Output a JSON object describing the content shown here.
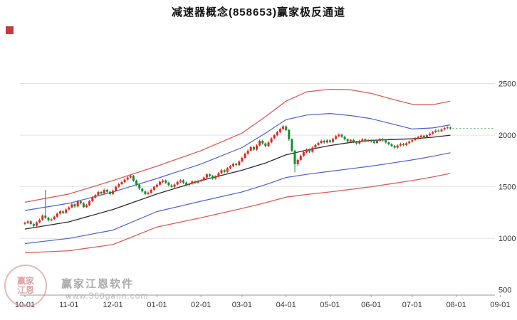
{
  "title": "减速器概念(858653)赢家极反通道",
  "watermark": {
    "line1": "赢家江恩软件",
    "line2": "www.360gann.com",
    "badge_line1": "赢家",
    "badge_line2": "江恩"
  },
  "chart_data": {
    "type": "candlestick",
    "title": "减速器概念(858653)赢家极反通道",
    "ylabel": "",
    "xlabel": "",
    "y_ticks": [
      500,
      1000,
      1500,
      2000,
      2500
    ],
    "y_range": [
      450,
      3000
    ],
    "grid": true,
    "x_labels": [
      "10-01",
      "11-01",
      "12-01",
      "01-01",
      "02-01",
      "03-01",
      "04-01",
      "05-01",
      "06-01",
      "07-01",
      "08-01",
      "09-01"
    ],
    "month_indices": [
      0,
      15,
      30,
      45,
      60,
      74,
      89,
      104,
      118,
      132,
      147,
      162
    ],
    "current_price": 2065,
    "candles": [
      [
        1140,
        1162,
        1128,
        1150
      ],
      [
        1150,
        1177,
        1140,
        1165
      ],
      [
        1165,
        1175,
        1130,
        1140
      ],
      [
        1140,
        1150,
        1110,
        1122
      ],
      [
        1122,
        1165,
        1112,
        1155
      ],
      [
        1155,
        1192,
        1145,
        1180
      ],
      [
        1180,
        1232,
        1170,
        1220
      ],
      [
        1220,
        1470,
        1190,
        1200
      ],
      [
        1200,
        1210,
        1163,
        1175
      ],
      [
        1175,
        1197,
        1165,
        1185
      ],
      [
        1185,
        1222,
        1175,
        1210
      ],
      [
        1210,
        1252,
        1200,
        1240
      ],
      [
        1240,
        1274,
        1230,
        1262
      ],
      [
        1262,
        1272,
        1236,
        1248
      ],
      [
        1248,
        1292,
        1238,
        1280
      ],
      [
        1280,
        1312,
        1270,
        1300
      ],
      [
        1300,
        1342,
        1290,
        1330
      ],
      [
        1330,
        1340,
        1298,
        1310
      ],
      [
        1310,
        1372,
        1300,
        1360
      ],
      [
        1360,
        1370,
        1328,
        1340
      ],
      [
        1340,
        1350,
        1293,
        1305
      ],
      [
        1305,
        1334,
        1295,
        1322
      ],
      [
        1322,
        1372,
        1312,
        1360
      ],
      [
        1360,
        1407,
        1350,
        1395
      ],
      [
        1395,
        1432,
        1385,
        1420
      ],
      [
        1420,
        1462,
        1410,
        1450
      ],
      [
        1450,
        1460,
        1423,
        1435
      ],
      [
        1435,
        1482,
        1425,
        1470
      ],
      [
        1470,
        1480,
        1440,
        1452
      ],
      [
        1452,
        1462,
        1418,
        1430
      ],
      [
        1430,
        1474,
        1420,
        1462
      ],
      [
        1462,
        1512,
        1452,
        1500
      ],
      [
        1500,
        1537,
        1490,
        1525
      ],
      [
        1525,
        1557,
        1515,
        1545
      ],
      [
        1545,
        1582,
        1535,
        1570
      ],
      [
        1570,
        1602,
        1560,
        1590
      ],
      [
        1590,
        1622,
        1580,
        1605
      ],
      [
        1605,
        1615,
        1548,
        1560
      ],
      [
        1560,
        1570,
        1508,
        1520
      ],
      [
        1520,
        1530,
        1470,
        1482
      ],
      [
        1482,
        1492,
        1443,
        1455
      ],
      [
        1455,
        1465,
        1418,
        1430
      ],
      [
        1430,
        1454,
        1420,
        1442
      ],
      [
        1442,
        1482,
        1432,
        1470
      ],
      [
        1470,
        1512,
        1460,
        1500
      ],
      [
        1500,
        1532,
        1490,
        1520
      ],
      [
        1520,
        1560,
        1510,
        1548
      ],
      [
        1548,
        1574,
        1538,
        1562
      ],
      [
        1562,
        1572,
        1528,
        1540
      ],
      [
        1540,
        1550,
        1503,
        1515
      ],
      [
        1515,
        1525,
        1488,
        1500
      ],
      [
        1500,
        1534,
        1490,
        1522
      ],
      [
        1522,
        1560,
        1512,
        1548
      ],
      [
        1548,
        1574,
        1538,
        1562
      ],
      [
        1562,
        1572,
        1528,
        1540
      ],
      [
        1540,
        1550,
        1506,
        1518
      ],
      [
        1518,
        1542,
        1508,
        1530
      ],
      [
        1530,
        1564,
        1520,
        1552
      ],
      [
        1552,
        1562,
        1528,
        1540
      ],
      [
        1540,
        1568,
        1530,
        1556
      ],
      [
        1556,
        1577,
        1546,
        1565
      ],
      [
        1565,
        1602,
        1555,
        1590
      ],
      [
        1590,
        1632,
        1580,
        1620
      ],
      [
        1620,
        1630,
        1593,
        1605
      ],
      [
        1605,
        1615,
        1568,
        1580
      ],
      [
        1580,
        1612,
        1570,
        1600
      ],
      [
        1600,
        1644,
        1590,
        1632
      ],
      [
        1632,
        1672,
        1622,
        1660
      ],
      [
        1660,
        1670,
        1633,
        1645
      ],
      [
        1645,
        1692,
        1635,
        1680
      ],
      [
        1680,
        1712,
        1670,
        1700
      ],
      [
        1700,
        1734,
        1690,
        1722
      ],
      [
        1722,
        1732,
        1698,
        1710
      ],
      [
        1710,
        1757,
        1700,
        1745
      ],
      [
        1745,
        1792,
        1735,
        1780
      ],
      [
        1780,
        1832,
        1770,
        1820
      ],
      [
        1820,
        1862,
        1810,
        1850
      ],
      [
        1850,
        1897,
        1840,
        1885
      ],
      [
        1885,
        1895,
        1848,
        1860
      ],
      [
        1860,
        1912,
        1850,
        1900
      ],
      [
        1900,
        1957,
        1890,
        1945
      ],
      [
        1945,
        1955,
        1908,
        1920
      ],
      [
        1920,
        1930,
        1883,
        1895
      ],
      [
        1895,
        1942,
        1885,
        1930
      ],
      [
        1930,
        1982,
        1920,
        1970
      ],
      [
        1970,
        2012,
        1960,
        2000
      ],
      [
        2000,
        2042,
        1990,
        2030
      ],
      [
        2030,
        2072,
        2020,
        2060
      ],
      [
        2060,
        2097,
        2050,
        2085
      ],
      [
        2085,
        2095,
        2038,
        2050
      ],
      [
        2050,
        2060,
        1945,
        1960
      ],
      [
        1960,
        1970,
        1835,
        1850
      ],
      [
        1850,
        1860,
        1640,
        1720
      ],
      [
        1720,
        1772,
        1700,
        1760
      ],
      [
        1760,
        1812,
        1750,
        1800
      ],
      [
        1800,
        1847,
        1790,
        1835
      ],
      [
        1835,
        1872,
        1825,
        1860
      ],
      [
        1860,
        1870,
        1828,
        1840
      ],
      [
        1840,
        1892,
        1830,
        1880
      ],
      [
        1880,
        1917,
        1870,
        1905
      ],
      [
        1905,
        1937,
        1895,
        1925
      ],
      [
        1925,
        1957,
        1915,
        1945
      ],
      [
        1945,
        1955,
        1918,
        1930
      ],
      [
        1930,
        1962,
        1920,
        1950
      ],
      [
        1950,
        1960,
        1923,
        1935
      ],
      [
        1935,
        1977,
        1925,
        1965
      ],
      [
        1965,
        2002,
        1955,
        1990
      ],
      [
        1990,
        2017,
        1980,
        2005
      ],
      [
        2005,
        2015,
        1973,
        1985
      ],
      [
        1985,
        1995,
        1948,
        1960
      ],
      [
        1960,
        1970,
        1928,
        1940
      ],
      [
        1940,
        1967,
        1930,
        1955
      ],
      [
        1955,
        1965,
        1923,
        1935
      ],
      [
        1935,
        1945,
        1908,
        1920
      ],
      [
        1920,
        1957,
        1910,
        1945
      ],
      [
        1945,
        1972,
        1935,
        1960
      ],
      [
        1960,
        1970,
        1930,
        1942
      ],
      [
        1942,
        1964,
        1932,
        1952
      ],
      [
        1952,
        1962,
        1928,
        1940
      ],
      [
        1940,
        1950,
        1913,
        1925
      ],
      [
        1925,
        1957,
        1915,
        1945
      ],
      [
        1945,
        1974,
        1935,
        1962
      ],
      [
        1962,
        1972,
        1938,
        1950
      ],
      [
        1950,
        1960,
        1918,
        1930
      ],
      [
        1930,
        1940,
        1900,
        1912
      ],
      [
        1912,
        1922,
        1883,
        1895
      ],
      [
        1895,
        1905,
        1868,
        1880
      ],
      [
        1880,
        1912,
        1870,
        1900
      ],
      [
        1900,
        1927,
        1890,
        1915
      ],
      [
        1915,
        1925,
        1893,
        1905
      ],
      [
        1905,
        1934,
        1895,
        1922
      ],
      [
        1922,
        1950,
        1912,
        1938
      ],
      [
        1938,
        1964,
        1928,
        1952
      ],
      [
        1952,
        1980,
        1942,
        1968
      ],
      [
        1968,
        1994,
        1958,
        1982
      ],
      [
        1982,
        2007,
        1972,
        1995
      ],
      [
        1995,
        2005,
        1968,
        1980
      ],
      [
        1980,
        2012,
        1970,
        2000
      ],
      [
        2000,
        2027,
        1990,
        2015
      ],
      [
        2015,
        2042,
        2005,
        2030
      ],
      [
        2030,
        2057,
        2020,
        2045
      ],
      [
        2045,
        2055,
        2026,
        2038
      ],
      [
        2038,
        2067,
        2028,
        2055
      ],
      [
        2055,
        2080,
        2045,
        2068
      ],
      [
        2068,
        2087,
        2058,
        2075
      ],
      [
        2075,
        2085,
        2053,
        2065
      ]
    ],
    "bands": {
      "keypoint_indices": [
        0,
        15,
        30,
        45,
        60,
        74,
        82,
        89,
        96,
        104,
        111,
        118,
        125,
        132,
        139,
        145
      ],
      "upper_red": [
        1350,
        1430,
        1560,
        1700,
        1850,
        2020,
        2180,
        2330,
        2420,
        2445,
        2440,
        2405,
        2350,
        2300,
        2295,
        2330
      ],
      "upper_blue": [
        1270,
        1340,
        1450,
        1580,
        1720,
        1880,
        2020,
        2150,
        2195,
        2210,
        2190,
        2160,
        2110,
        2060,
        2070,
        2100
      ],
      "middle": [
        1090,
        1160,
        1280,
        1430,
        1560,
        1660,
        1730,
        1810,
        1855,
        1900,
        1930,
        1950,
        1958,
        1965,
        1980,
        2000
      ],
      "lower_blue": [
        950,
        1000,
        1080,
        1260,
        1360,
        1450,
        1520,
        1590,
        1620,
        1650,
        1675,
        1700,
        1730,
        1760,
        1795,
        1830
      ],
      "lower_red": [
        860,
        880,
        940,
        1110,
        1200,
        1290,
        1345,
        1400,
        1425,
        1450,
        1475,
        1500,
        1530,
        1560,
        1595,
        1630
      ]
    },
    "colors": {
      "up": "#dd2a20",
      "down": "#0e8f2f",
      "band_red": "#e05a5a",
      "band_blue": "#4c5fd6",
      "band_middle": "#2b2b2b",
      "current": "#3aa35c",
      "grid": "#e3e3e3",
      "axis": "#9a9a9a",
      "label": "#333333",
      "marker": "#c43b3b"
    }
  }
}
